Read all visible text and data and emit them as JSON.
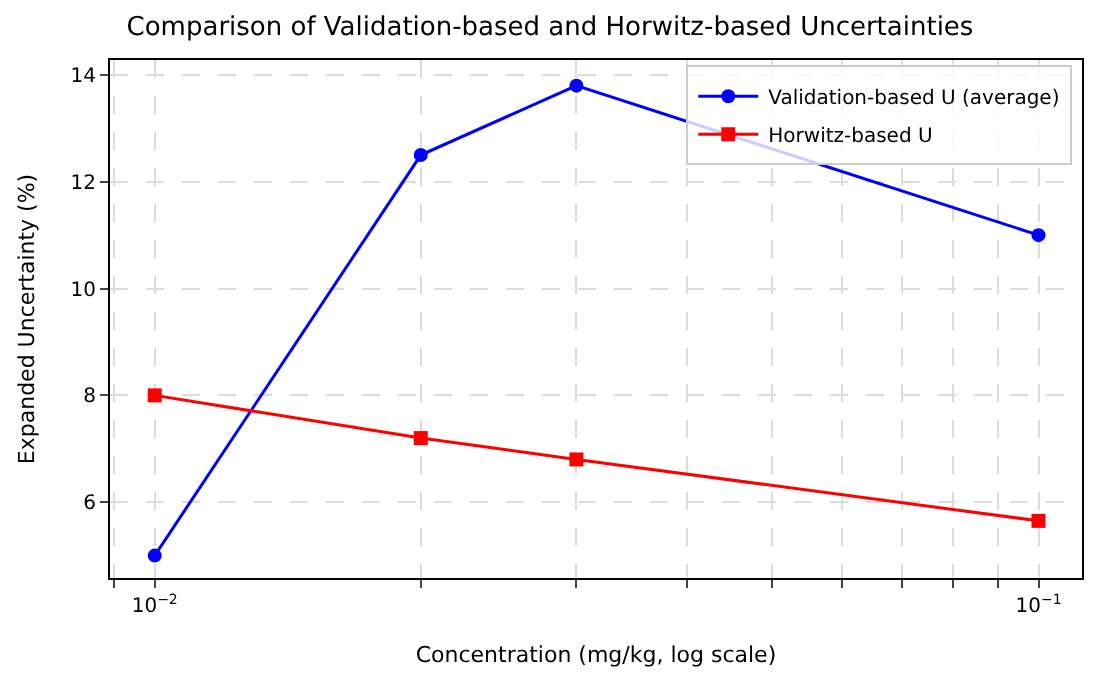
{
  "chart_data": {
    "type": "line",
    "title": "Comparison of Validation-based and Horwitz-based Uncertainties",
    "xlabel": "Concentration (mg/kg, log scale)",
    "ylabel": "Expanded Uncertainty (%)",
    "x": [
      0.01,
      0.02,
      0.03,
      0.1
    ],
    "series": [
      {
        "name": "Validation-based U (average)",
        "color": "#0000ff",
        "values": [
          5.0,
          12.5,
          13.8,
          11.0
        ],
        "marker": "circle"
      },
      {
        "name": "Horwitz-based U",
        "color": "#ff0000",
        "values": [
          8.0,
          7.2,
          6.8,
          5.65
        ],
        "marker": "square"
      }
    ],
    "log": "x",
    "xlim": [
      0.0089,
      0.112
    ],
    "ylim": [
      4.58,
      14.28
    ],
    "xticks": [
      {
        "value": 0.009,
        "label": null
      },
      {
        "value": 0.01,
        "label": "10$^{−2}$"
      },
      {
        "value": 0.02,
        "label": null
      },
      {
        "value": 0.03,
        "label": null
      },
      {
        "value": 0.04,
        "label": null
      },
      {
        "value": 0.05,
        "label": null
      },
      {
        "value": 0.06,
        "label": null
      },
      {
        "value": 0.07,
        "label": null
      },
      {
        "value": 0.08,
        "label": null
      },
      {
        "value": 0.09,
        "label": null
      },
      {
        "value": 0.1,
        "label": "10$^{−1}$"
      }
    ],
    "yticks": [
      6,
      8,
      10,
      12,
      14
    ],
    "grid": true,
    "legend": "top right",
    "line_style": "solid"
  }
}
